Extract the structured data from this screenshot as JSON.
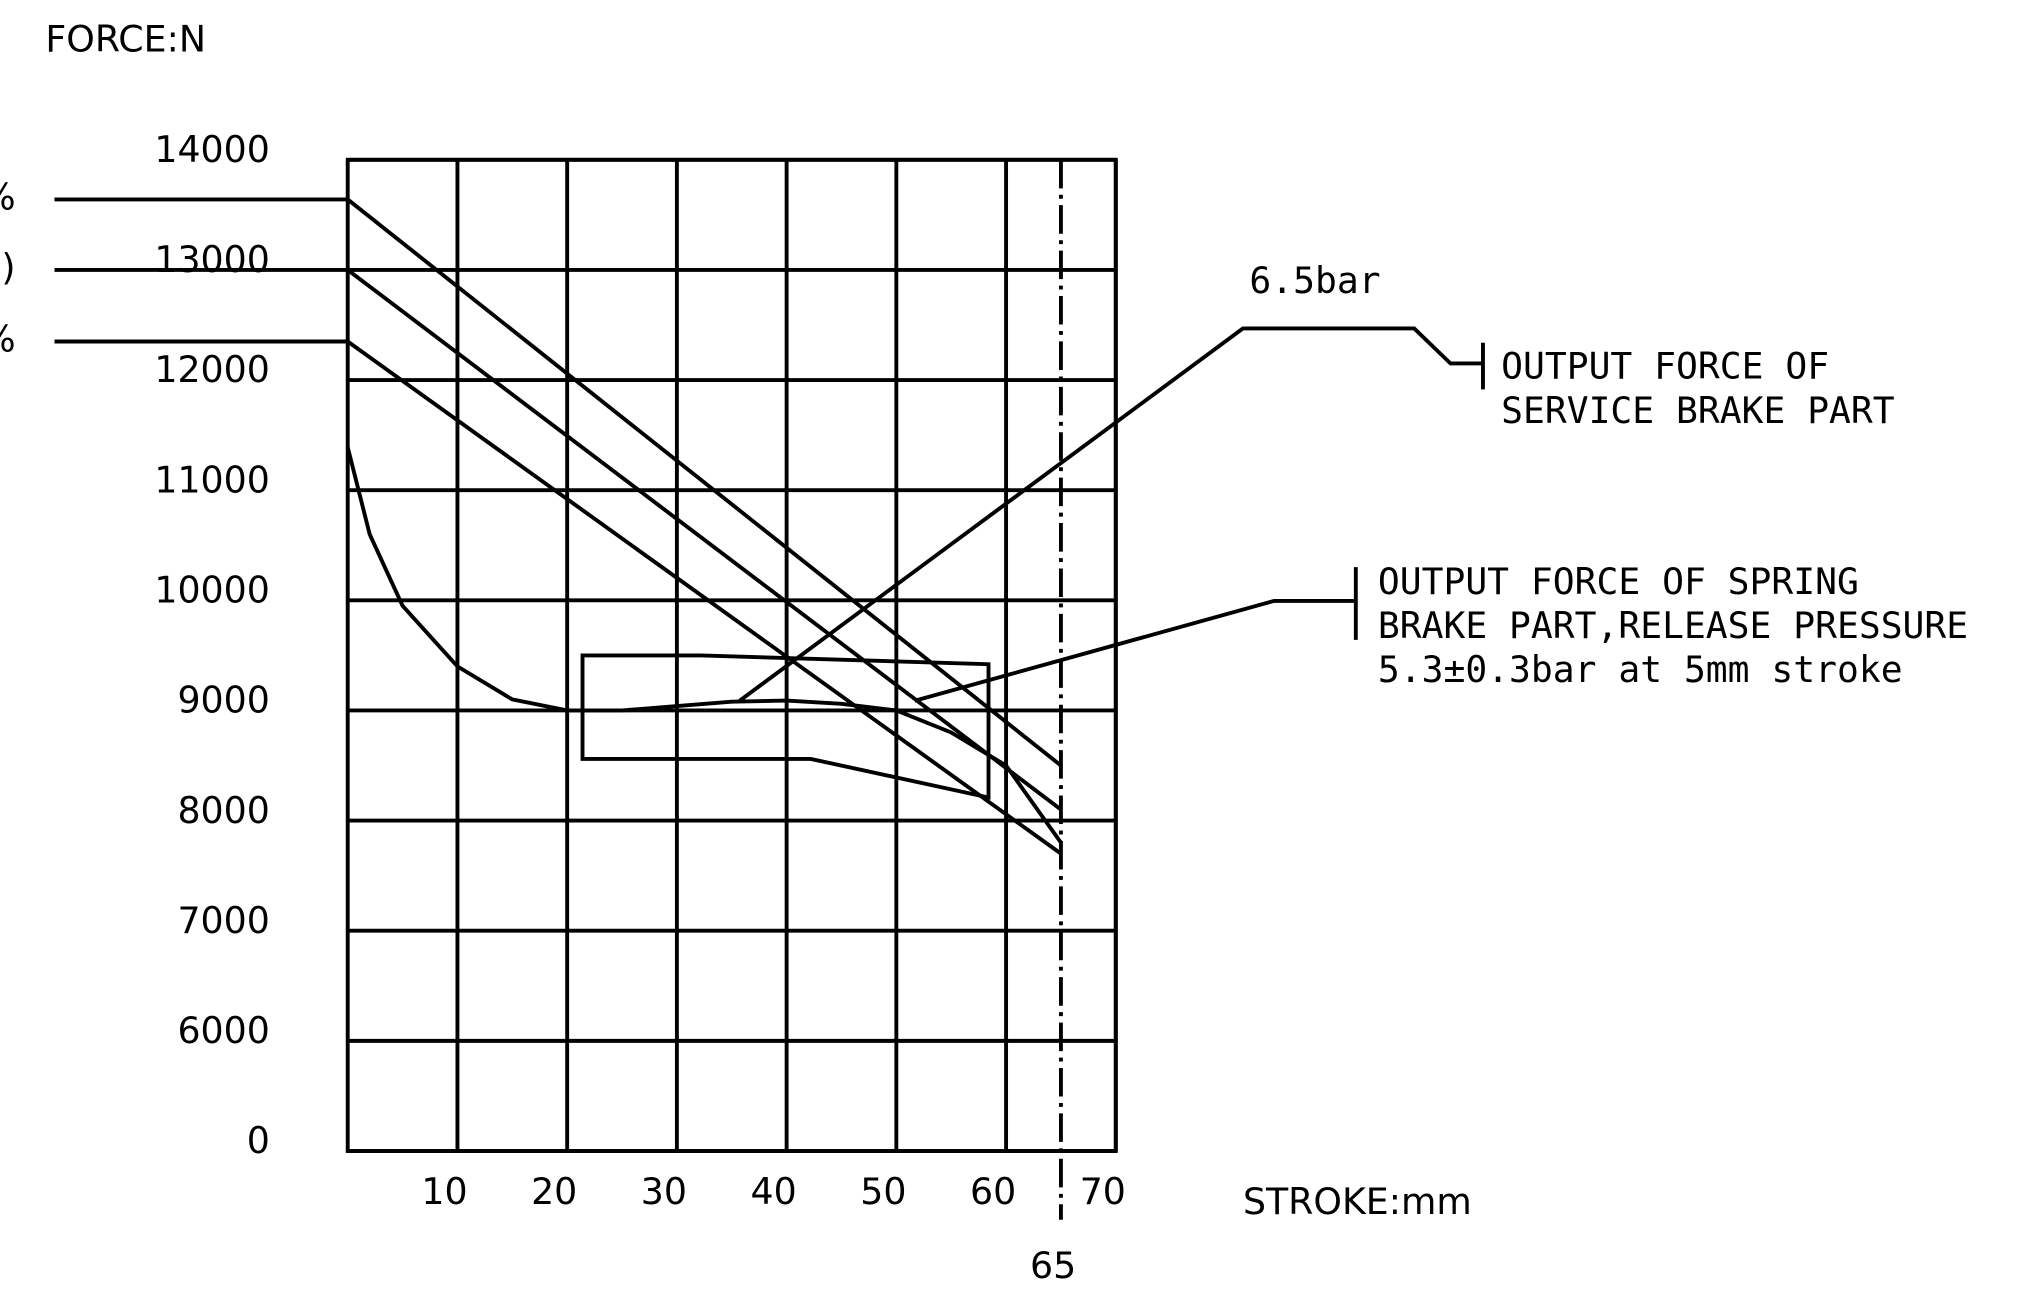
{
  "chart_data": {
    "type": "line",
    "y_label": "FORCE:N",
    "x_label": "STROKE:mm",
    "xlim": [
      0,
      70
    ],
    "xticks": [
      10,
      20,
      30,
      40,
      50,
      60,
      70
    ],
    "ylim": [
      0,
      14000
    ],
    "yticks": [
      0,
      6000,
      7000,
      8000,
      9000,
      10000,
      11000,
      12000,
      13000,
      14000
    ],
    "ybreak": [
      0,
      6000
    ],
    "grid": true,
    "marker_line": {
      "x": 65,
      "label": "65"
    },
    "series": [
      {
        "label": "%",
        "color": "#000000",
        "x": [
          0,
          65
        ],
        "values": [
          13640,
          8500
        ]
      },
      {
        "label": ")",
        "color": "#000000",
        "x": [
          0,
          65
        ],
        "values": [
          13000,
          8100
        ]
      },
      {
        "label": "%",
        "color": "#000000",
        "x": [
          0,
          65
        ],
        "values": [
          12350,
          7700
        ]
      },
      {
        "color": "#000000",
        "x": [
          0,
          2,
          5,
          10,
          15,
          20,
          25,
          30,
          35,
          40,
          45,
          50,
          55,
          60,
          65
        ],
        "values": [
          11390,
          10600,
          9950,
          9400,
          9100,
          9000,
          9000,
          9040,
          9080,
          9090,
          9060,
          9000,
          8800,
          8500,
          7800
        ]
      }
    ],
    "tolerance_box": {
      "x": [
        21.4,
        32.2,
        58.4,
        58.4,
        42.2,
        21.4
      ],
      "values": [
        9500,
        9500,
        9420,
        8210,
        8560,
        8560
      ]
    },
    "annotations": [
      {
        "text": "6.5bar"
      },
      {
        "text": [
          "OUTPUT FORCE OF",
          "SERVICE BRAKE PART"
        ]
      },
      {
        "text": [
          "OUTPUT FORCE OF SPRING",
          "BRAKE PART,RELEASE PRESSURE",
          "5.3±0.3bar at 5mm stroke"
        ]
      }
    ]
  }
}
